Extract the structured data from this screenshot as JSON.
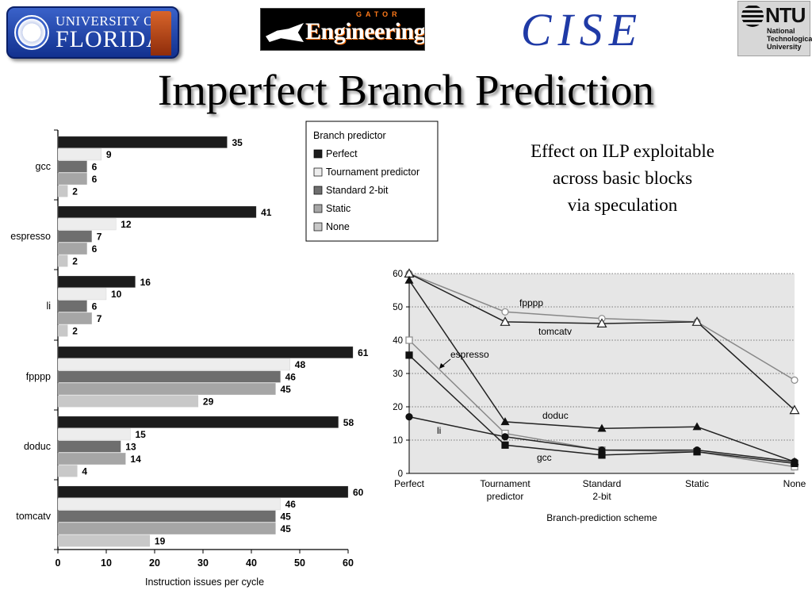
{
  "header": {
    "uf_logo": {
      "line1": "UNIVERSITY OF",
      "line2": "FLORIDA"
    },
    "gator_logo": {
      "small": "GATOR",
      "big": "Engineering"
    },
    "cise_logo": "CISE",
    "ntu_logo": {
      "big": "NTU",
      "lines": [
        "National",
        "Technological",
        "University"
      ]
    }
  },
  "title": "Imperfect Branch Prediction",
  "caption": [
    "Effect on ILP exploitable",
    "across basic blocks",
    "via speculation"
  ],
  "colors": {
    "perfect": "#1c1c1c",
    "tournament": "#ededed",
    "standard": "#6e6e6e",
    "static": "#a6a6a6",
    "none": "#c8c8c8",
    "plot_bg": "#e6e6e6"
  },
  "chart_data": [
    {
      "type": "bar",
      "orientation": "horizontal",
      "xlabel": "Instruction issues per cycle",
      "xlim": [
        0,
        60
      ],
      "xticks": [
        0,
        10,
        20,
        30,
        40,
        50,
        60
      ],
      "categories": [
        "gcc",
        "espresso",
        "li",
        "fpppp",
        "doduc",
        "tomcatv"
      ],
      "legend": {
        "title": "Branch predictor",
        "placement": "top-right"
      },
      "series": [
        {
          "name": "Perfect",
          "values": [
            35,
            41,
            16,
            61,
            58,
            60
          ]
        },
        {
          "name": "Tournament predictor",
          "values": [
            9,
            12,
            10,
            48,
            15,
            46
          ]
        },
        {
          "name": "Standard 2-bit",
          "values": [
            6,
            7,
            6,
            46,
            13,
            45
          ]
        },
        {
          "name": "Static",
          "values": [
            6,
            6,
            7,
            45,
            14,
            45
          ]
        },
        {
          "name": "None",
          "values": [
            2,
            2,
            2,
            29,
            4,
            19
          ]
        }
      ]
    },
    {
      "type": "line",
      "xlabel": "Branch-prediction scheme",
      "ylim": [
        0,
        60
      ],
      "yticks": [
        0,
        10,
        20,
        30,
        40,
        50,
        60
      ],
      "grid": true,
      "categories": [
        "Perfect",
        "Tournament predictor",
        "Standard 2-bit",
        "Static",
        "None"
      ],
      "category_lines": [
        [
          "Perfect"
        ],
        [
          "Tournament",
          "predictor"
        ],
        [
          "Standard",
          "2-bit"
        ],
        [
          "Static"
        ],
        [
          "None"
        ]
      ],
      "series": [
        {
          "name": "fpppp",
          "values": [
            60,
            48.5,
            46.5,
            45.5,
            28
          ],
          "marker": "circle-open",
          "color": "#888888"
        },
        {
          "name": "tomcatv",
          "values": [
            60,
            45.5,
            45,
            45.5,
            19
          ],
          "marker": "triangle-open",
          "color": "#222222"
        },
        {
          "name": "espresso",
          "values": [
            40,
            12,
            7,
            6.5,
            2
          ],
          "marker": "square-open",
          "color": "#888888"
        },
        {
          "name": "doduc",
          "values": [
            58,
            15.5,
            13.5,
            14,
            3.5
          ],
          "marker": "triangle-filled",
          "color": "#222222"
        },
        {
          "name": "li",
          "values": [
            17,
            11,
            7,
            7,
            3.5
          ],
          "marker": "circle-filled",
          "color": "#222222"
        },
        {
          "name": "gcc",
          "values": [
            35.5,
            8.5,
            5.5,
            6.5,
            3
          ],
          "marker": "square-filled",
          "color": "#222222"
        }
      ]
    }
  ]
}
